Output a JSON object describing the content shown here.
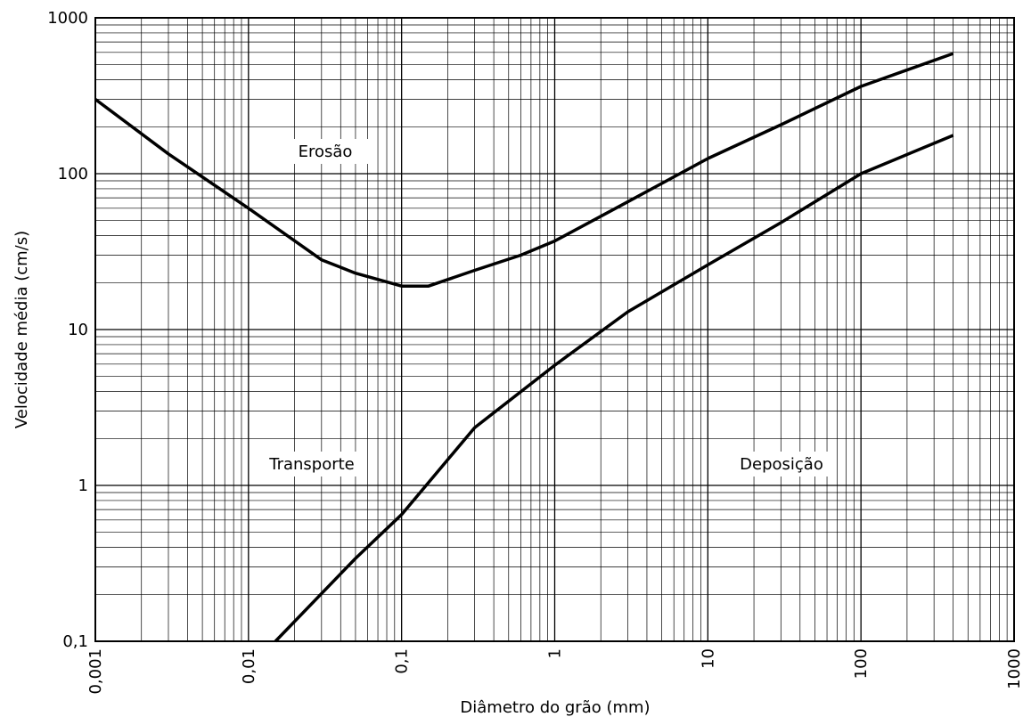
{
  "chart_data": {
    "type": "line",
    "xlabel": "Diâmetro do grão (mm)",
    "ylabel": "Velocidade média (cm/s)",
    "xscale": "log",
    "yscale": "log",
    "xlim": [
      0.001,
      1000
    ],
    "ylim": [
      0.1,
      1000
    ],
    "xticks": [
      {
        "value": 0.001,
        "label": "0,001"
      },
      {
        "value": 0.01,
        "label": "0,01"
      },
      {
        "value": 0.1,
        "label": "0,1"
      },
      1,
      10,
      100,
      1000
    ],
    "yticks": [
      {
        "value": 0.1,
        "label": "0,1"
      },
      1,
      10,
      100,
      1000
    ],
    "grid": true,
    "minor_grid": true,
    "series": [
      {
        "color": "#000000",
        "x": [
          0.001,
          0.003,
          0.01,
          0.03,
          0.05,
          0.1,
          0.15,
          0.3,
          0.6,
          1,
          3,
          10,
          30,
          100,
          400
        ],
        "values": [
          300,
          134,
          60,
          28,
          23,
          19,
          19,
          24,
          30,
          37,
          66,
          125,
          206,
          363,
          590
        ]
      },
      {
        "color": "#000000",
        "x": [
          0.015,
          0.05,
          0.1,
          0.3,
          1,
          3,
          10,
          30,
          100,
          400
        ],
        "values": [
          0.1,
          0.34,
          0.65,
          2.35,
          5.9,
          13,
          26,
          48.5,
          100,
          176
        ]
      }
    ],
    "annotations": [
      "Erosão",
      "Transporte",
      "Deposição"
    ]
  }
}
